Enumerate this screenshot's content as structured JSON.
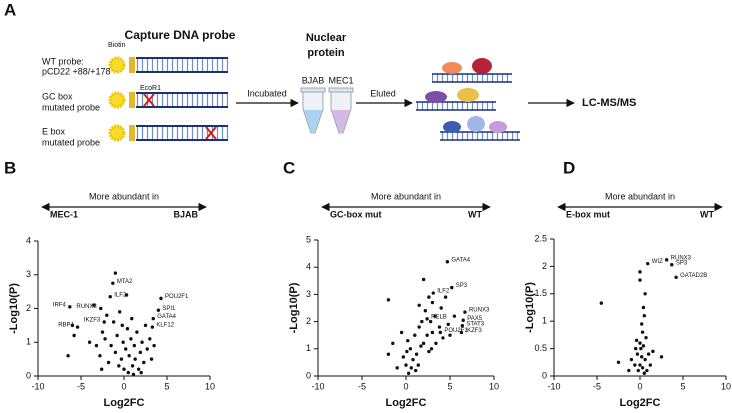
{
  "diagram": {
    "panel": "A",
    "title": "Capture DNA probe",
    "biotin": "Biotin",
    "ecor1": "EcoR1",
    "probes": [
      {
        "lines": [
          "WT probe:",
          "pCD22 +88/+178"
        ]
      },
      {
        "lines": [
          "GC box",
          "mutated probe"
        ]
      },
      {
        "lines": [
          "E box",
          "mutated probe"
        ]
      }
    ],
    "incubated": "Incubated",
    "nuclear_protein": [
      "Nuclear",
      "protein"
    ],
    "tubes": [
      "BJAB",
      "MEC1"
    ],
    "eluted": "Eluted",
    "output": "LC-MS/MS"
  },
  "chart_data": [
    {
      "type": "scatter",
      "panel": "B",
      "title": "More abundant in",
      "arrow_labels": [
        "MEC-1",
        "BJAB"
      ],
      "xlabel": "Log2FC",
      "ylabel": "-Log10(P)",
      "color": "#111111",
      "xlim": [
        -10,
        10
      ],
      "xticks": [
        -10,
        -5,
        0,
        5,
        10
      ],
      "ylim": [
        0,
        4
      ],
      "yticks": [
        0,
        1,
        2,
        3,
        4
      ],
      "x": [
        -1,
        0.3,
        -3.5,
        -2,
        -2.5,
        -6,
        -5.8,
        -6.5,
        -4,
        -3.2,
        -2.8,
        -2.2,
        -1.8,
        -1.5,
        -1.2,
        -1,
        -0.8,
        -0.6,
        -0.5,
        -0.3,
        -0.1,
        0,
        0.2,
        0.4,
        0.5,
        0.6,
        0.8,
        1,
        1.2,
        1.3,
        1.5,
        1.7,
        1.9,
        2.1,
        2.3,
        2.5,
        2.7,
        3,
        3.2,
        3.5,
        0.9,
        -0.2,
        1.1,
        -2.6,
        2
      ],
      "y": [
        3.05,
        2.4,
        2.1,
        1.8,
        1.3,
        1.5,
        1.2,
        0.6,
        1.0,
        0.9,
        0.6,
        1.1,
        0.4,
        0.9,
        1.6,
        0.7,
        1.2,
        0.3,
        1.9,
        0.5,
        1.0,
        0.2,
        0.8,
        1.4,
        0.1,
        0.6,
        1.1,
        0.3,
        0.9,
        0.5,
        1.3,
        0.2,
        0.7,
        1.0,
        0.4,
        1.5,
        0.8,
        1.1,
        0.5,
        0.9,
        1.7,
        1.5,
        0.05,
        0.2,
        0.1
      ],
      "annotations": [
        {
          "text": "MTA2",
          "x": -1.3,
          "y": 2.75
        },
        {
          "text": "ILF2",
          "x": -1.6,
          "y": 2.35
        },
        {
          "text": "POU2F1",
          "x": 4.3,
          "y": 2.3
        },
        {
          "text": "SPI1",
          "x": 4.0,
          "y": 1.95
        },
        {
          "text": "GATA4",
          "x": 3.4,
          "y": 1.7
        },
        {
          "text": "KLF12",
          "x": 3.3,
          "y": 1.45
        },
        {
          "text": "IRF4",
          "x": -6.3,
          "y": 2.05
        },
        {
          "text": "RUNX3",
          "x": -2.7,
          "y": 2.0
        },
        {
          "text": "IKZF3",
          "x": -2.3,
          "y": 1.6
        },
        {
          "text": "RBPJ",
          "x": -5.4,
          "y": 1.45
        }
      ]
    },
    {
      "type": "scatter",
      "panel": "C",
      "title": "More abundant in",
      "arrow_labels": [
        "GC-box mut",
        "WT"
      ],
      "xlabel": "Log2FC",
      "ylabel": "-Log10(P)",
      "color": "#111111",
      "xlim": [
        -10,
        10
      ],
      "xticks": [
        -10,
        -5,
        0,
        5,
        10
      ],
      "ylim": [
        0,
        5
      ],
      "yticks": [
        0,
        1,
        2,
        3,
        4,
        5
      ],
      "x": [
        -2,
        2,
        2.6,
        2.2,
        1.5,
        3,
        3.3,
        1.8,
        2.8,
        4,
        4.5,
        5.5,
        -0.5,
        -1.5,
        -2,
        0.2,
        0.5,
        0.8,
        1,
        1.2,
        1.5,
        2,
        2.4,
        2.6,
        3,
        3.4,
        3.8,
        4.2,
        0,
        0.3,
        -0.3,
        0.6,
        1.1,
        1.4,
        -1,
        0.1,
        4.8,
        5,
        2.9,
        1.7
      ],
      "y": [
        2.8,
        3.55,
        2.9,
        2.4,
        2.6,
        2.7,
        2.2,
        2.0,
        2.0,
        2.5,
        2.9,
        2.2,
        1.6,
        1.2,
        0.8,
        1.3,
        1.0,
        0.6,
        1.5,
        0.8,
        1.8,
        1.2,
        1.5,
        0.9,
        1.6,
        1.2,
        1.8,
        1.4,
        0.4,
        0.1,
        0.7,
        0.3,
        0.2,
        0.4,
        0.3,
        0.9,
        1.9,
        1.5,
        1.0,
        1.1
      ],
      "annotations": [
        {
          "text": "GATA4",
          "x": 4.7,
          "y": 4.2
        },
        {
          "text": "SP3",
          "x": 5.2,
          "y": 3.25
        },
        {
          "text": "ILF2",
          "x": 3.1,
          "y": 3.05
        },
        {
          "text": "RUNX3",
          "x": 6.7,
          "y": 2.35
        },
        {
          "text": "PAX5",
          "x": 6.5,
          "y": 2.05
        },
        {
          "text": "STAT3",
          "x": 6.4,
          "y": 1.85
        },
        {
          "text": "IKZF3",
          "x": 6.3,
          "y": 1.6
        },
        {
          "text": "RELB",
          "x": 2.4,
          "y": 2.1
        },
        {
          "text": "POU2F1",
          "x": 3.9,
          "y": 1.6
        }
      ]
    },
    {
      "type": "scatter",
      "panel": "D",
      "title": "More abundant in",
      "arrow_labels": [
        "E-box mut",
        "WT"
      ],
      "xlabel": "Log2FC",
      "ylabel": "-Log10(P)",
      "color": "#111111",
      "xlim": [
        -10,
        10
      ],
      "xticks": [
        -10,
        -5,
        0,
        5,
        10
      ],
      "ylim": [
        0,
        2.5
      ],
      "yticks": [
        0,
        0.5,
        1,
        1.5,
        2,
        2.5
      ],
      "x": [
        -4.5,
        0,
        0,
        0.6,
        0.4,
        0.5,
        0.2,
        0.3,
        -0.5,
        0,
        0.4,
        -0.3,
        0.2,
        0.6,
        1,
        1.5,
        2.5,
        -1,
        -2.5,
        0,
        0.3,
        -0.2,
        0.5,
        1.2,
        -0.6,
        0.8,
        -1.3,
        0.1,
        0.7,
        -0.4
      ],
      "y": [
        1.33,
        1.9,
        1.75,
        1.5,
        1.25,
        1.1,
        0.95,
        0.8,
        0.5,
        0.6,
        0.55,
        0.4,
        0.35,
        0.3,
        0.4,
        0.45,
        0.35,
        0.3,
        0.25,
        0.2,
        0.15,
        0.1,
        0.05,
        0.2,
        0.2,
        0.1,
        0.1,
        0.5,
        0.7,
        0.65
      ],
      "annotations": [
        {
          "text": "RUNX3",
          "x": 3.1,
          "y": 2.12
        },
        {
          "text": "SP3",
          "x": 3.7,
          "y": 2.03
        },
        {
          "text": "WIZ",
          "x": 0.9,
          "y": 2.05
        },
        {
          "text": "GATAD2B",
          "x": 4.2,
          "y": 1.8
        }
      ]
    }
  ]
}
